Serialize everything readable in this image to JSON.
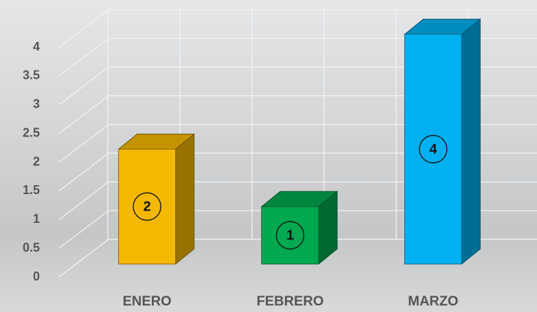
{
  "chart_data": {
    "type": "bar3d",
    "categories": [
      "ENERO",
      "FEBRERO",
      "MARZO"
    ],
    "series": [
      {
        "values": [
          2,
          1,
          4
        ],
        "colors": [
          "#f5b800",
          "#00a84f",
          "#00b0f0"
        ]
      }
    ],
    "ylim": [
      0,
      4
    ],
    "yticks": [
      0,
      0.5,
      1,
      1.5,
      2,
      2.5,
      3,
      3.5,
      4
    ],
    "grid": true
  }
}
